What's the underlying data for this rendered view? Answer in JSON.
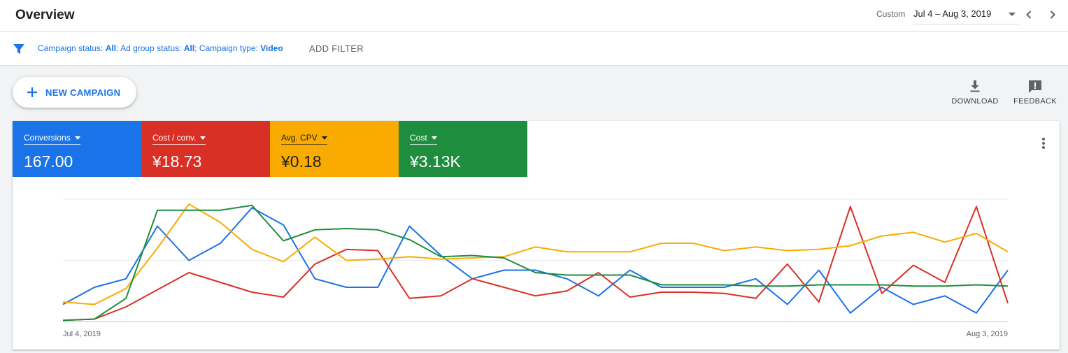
{
  "header": {
    "title": "Overview",
    "date_range_label": "Custom",
    "date_range_value": "Jul 4 – Aug 3, 2019",
    "prev_icon": "chevron-left-icon",
    "next_icon": "chevron-right-icon"
  },
  "filters": {
    "icon": "filter-icon",
    "items": [
      {
        "label": "Campaign status: ",
        "value": "All",
        "sep": "; "
      },
      {
        "label": "Ad group status: ",
        "value": "All",
        "sep": "; "
      },
      {
        "label": "Campaign type: ",
        "value": "Video",
        "sep": ""
      }
    ],
    "add_filter_label": "ADD FILTER"
  },
  "toolbar": {
    "new_campaign_label": "NEW CAMPAIGN",
    "download_label": "DOWNLOAD",
    "feedback_label": "FEEDBACK"
  },
  "metrics": [
    {
      "label": "Conversions",
      "value": "167.00",
      "color": "#1a73e8"
    },
    {
      "label": "Cost / conv.",
      "value": "¥18.73",
      "color": "#d93025"
    },
    {
      "label": "Avg. CPV",
      "value": "¥0.18",
      "color": "#f9ab00"
    },
    {
      "label": "Cost",
      "value": "¥3.13K",
      "color": "#1e8e3e"
    }
  ],
  "chart_data": {
    "type": "line",
    "x_start_label": "Jul 4, 2019",
    "x_end_label": "Aug 3, 2019",
    "y_max": 100,
    "gridlines": 3,
    "series": [
      {
        "name": "Conversions",
        "color": "#1a73e8",
        "values": [
          14,
          28,
          35,
          78,
          50,
          64,
          93,
          79,
          35,
          28,
          28,
          78,
          54,
          35,
          42,
          42,
          35,
          21,
          42,
          28,
          28,
          28,
          35,
          14,
          42,
          7,
          28,
          14,
          21,
          7,
          42
        ]
      },
      {
        "name": "Cost / conv.",
        "color": "#d93025",
        "values": [
          1,
          2,
          12,
          26,
          40,
          32,
          24,
          20,
          47,
          59,
          58,
          19,
          21,
          35,
          28,
          21,
          25,
          40,
          20,
          24,
          24,
          23,
          19,
          47,
          16,
          94,
          23,
          46,
          32,
          94,
          15
        ]
      },
      {
        "name": "Avg. CPV",
        "color": "#f9ab00",
        "values": [
          16,
          14,
          27,
          60,
          96,
          81,
          59,
          49,
          69,
          50,
          51,
          53,
          51,
          52,
          53,
          61,
          57,
          57,
          57,
          64,
          64,
          58,
          61,
          58,
          59,
          62,
          70,
          73,
          65,
          72,
          57
        ]
      },
      {
        "name": "Cost",
        "color": "#1e8e3e",
        "values": [
          1,
          2,
          19,
          91,
          91,
          91,
          95,
          66,
          75,
          76,
          75,
          67,
          53,
          54,
          52,
          40,
          38,
          38,
          38,
          30,
          30,
          30,
          29,
          29,
          30,
          30,
          30,
          29,
          29,
          30,
          29
        ]
      }
    ]
  }
}
